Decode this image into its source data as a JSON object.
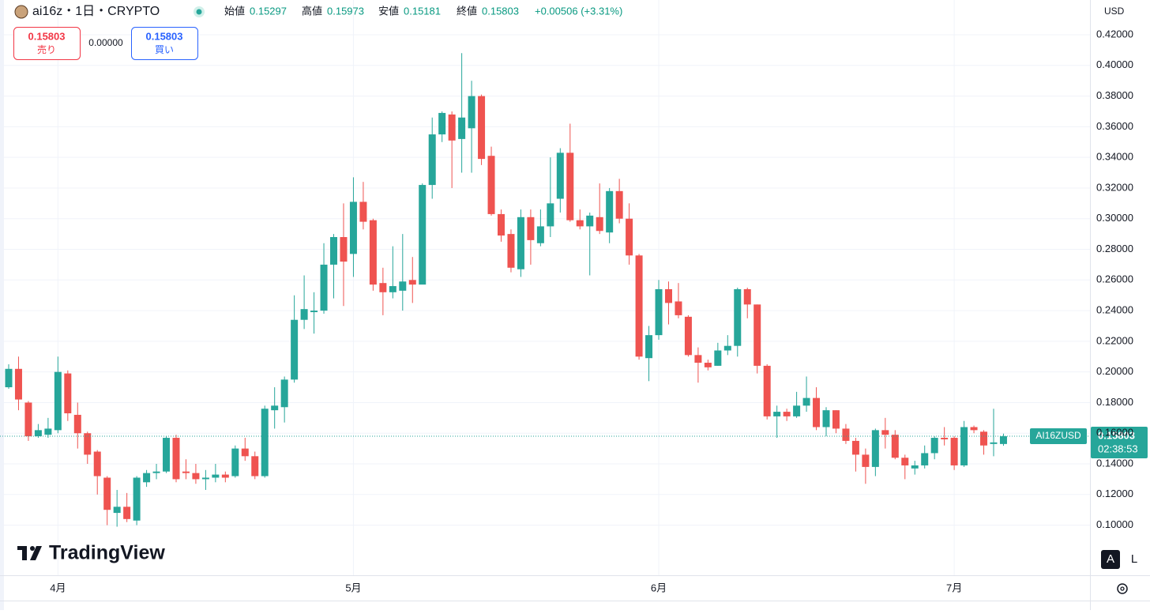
{
  "header": {
    "symbol": "ai16z・1日・CRYPTO",
    "open_label": "始値",
    "high_label": "高値",
    "low_label": "安値",
    "close_label": "終値",
    "change": "+0.00506 (+3.31%)"
  },
  "trade": {
    "sell_label": "売り",
    "spread": "0.00000",
    "buy_label": "買い"
  },
  "currency": "USD",
  "price_tag": {
    "symbol": "AI16ZUSD",
    "countdown": "02:38:53"
  },
  "logo": "TradingView",
  "buttons": [
    "A",
    "L"
  ],
  "chart_data": {
    "type": "candlestick",
    "up_color": "#26a69a",
    "down_color": "#ef5350",
    "open": [
      0.19,
      0.202,
      0.18,
      0.158,
      0.159,
      0.162,
      0.199,
      0.172,
      0.16,
      0.148,
      0.131,
      0.108,
      0.112,
      0.103,
      0.128,
      0.134,
      0.135,
      0.157,
      0.135,
      0.134,
      0.13,
      0.131,
      0.133,
      0.132,
      0.15,
      0.145,
      0.132,
      0.175,
      0.177,
      0.195,
      0.234,
      0.239,
      0.24,
      0.27,
      0.288,
      0.277,
      0.311,
      0.299,
      0.258,
      0.252,
      0.253,
      0.26,
      0.257,
      0.322,
      0.355,
      0.368,
      0.352,
      0.359,
      0.38,
      0.341,
      0.303,
      0.29,
      0.267,
      0.301,
      0.284,
      0.295,
      0.313,
      0.343,
      0.299,
      0.295,
      0.301,
      0.291,
      0.318,
      0.3,
      0.276,
      0.209,
      0.224,
      0.254,
      0.246,
      0.236,
      0.211,
      0.206,
      0.204,
      0.214,
      0.217,
      0.254,
      0.244,
      0.204,
      0.171,
      0.174,
      0.171,
      0.178,
      0.183,
      0.164,
      0.175,
      0.163,
      0.155,
      0.146,
      0.138,
      0.162,
      0.159,
      0.144,
      0.137,
      0.139,
      0.147,
      0.157,
      0.157,
      0.139,
      0.164,
      0.161,
      0.153,
      0.15297
    ],
    "high": [
      0.205,
      0.21,
      0.181,
      0.166,
      0.17,
      0.21,
      0.201,
      0.18,
      0.161,
      0.149,
      0.132,
      0.123,
      0.121,
      0.132,
      0.136,
      0.14,
      0.158,
      0.159,
      0.143,
      0.14,
      0.136,
      0.14,
      0.135,
      0.152,
      0.157,
      0.148,
      0.178,
      0.19,
      0.197,
      0.25,
      0.263,
      0.252,
      0.284,
      0.29,
      0.31,
      0.327,
      0.324,
      0.3,
      0.268,
      0.282,
      0.29,
      0.275,
      0.323,
      0.366,
      0.37,
      0.37,
      0.408,
      0.39,
      0.381,
      0.347,
      0.306,
      0.293,
      0.306,
      0.306,
      0.306,
      0.34,
      0.346,
      0.362,
      0.306,
      0.304,
      0.323,
      0.32,
      0.326,
      0.31,
      0.277,
      0.23,
      0.26,
      0.259,
      0.258,
      0.237,
      0.216,
      0.208,
      0.219,
      0.224,
      0.255,
      0.255,
      0.244,
      0.205,
      0.178,
      0.176,
      0.187,
      0.197,
      0.19,
      0.177,
      0.175,
      0.166,
      0.157,
      0.15,
      0.163,
      0.17,
      0.162,
      0.146,
      0.142,
      0.152,
      0.158,
      0.164,
      0.158,
      0.168,
      0.165,
      0.162,
      0.176,
      0.15973
    ],
    "low": [
      0.189,
      0.175,
      0.155,
      0.157,
      0.157,
      0.16,
      0.168,
      0.15,
      0.14,
      0.12,
      0.1,
      0.099,
      0.102,
      0.1,
      0.125,
      0.13,
      0.134,
      0.128,
      0.13,
      0.127,
      0.123,
      0.128,
      0.128,
      0.131,
      0.142,
      0.13,
      0.131,
      0.163,
      0.167,
      0.193,
      0.228,
      0.225,
      0.238,
      0.248,
      0.243,
      0.262,
      0.293,
      0.253,
      0.237,
      0.248,
      0.24,
      0.245,
      0.26,
      0.313,
      0.35,
      0.32,
      0.33,
      0.33,
      0.335,
      0.302,
      0.285,
      0.265,
      0.262,
      0.27,
      0.282,
      0.288,
      0.304,
      0.298,
      0.293,
      0.263,
      0.29,
      0.284,
      0.297,
      0.27,
      0.208,
      0.194,
      0.221,
      0.231,
      0.235,
      0.21,
      0.193,
      0.201,
      0.204,
      0.211,
      0.21,
      0.235,
      0.199,
      0.169,
      0.157,
      0.168,
      0.17,
      0.174,
      0.162,
      0.158,
      0.16,
      0.153,
      0.135,
      0.127,
      0.132,
      0.15,
      0.143,
      0.13,
      0.133,
      0.137,
      0.143,
      0.152,
      0.136,
      0.138,
      0.16,
      0.146,
      0.145,
      0.15181
    ],
    "close": [
      0.202,
      0.182,
      0.158,
      0.162,
      0.163,
      0.2,
      0.173,
      0.16,
      0.146,
      0.132,
      0.11,
      0.112,
      0.104,
      0.131,
      0.134,
      0.135,
      0.157,
      0.13,
      0.134,
      0.13,
      0.131,
      0.133,
      0.131,
      0.15,
      0.145,
      0.132,
      0.176,
      0.178,
      0.195,
      0.234,
      0.241,
      0.24,
      0.27,
      0.288,
      0.272,
      0.311,
      0.298,
      0.257,
      0.252,
      0.256,
      0.259,
      0.257,
      0.322,
      0.355,
      0.369,
      0.351,
      0.366,
      0.38,
      0.339,
      0.303,
      0.289,
      0.268,
      0.301,
      0.286,
      0.295,
      0.31,
      0.343,
      0.299,
      0.295,
      0.302,
      0.292,
      0.318,
      0.3,
      0.276,
      0.21,
      0.224,
      0.254,
      0.245,
      0.237,
      0.211,
      0.206,
      0.203,
      0.214,
      0.217,
      0.254,
      0.244,
      0.204,
      0.171,
      0.174,
      0.171,
      0.178,
      0.183,
      0.164,
      0.175,
      0.163,
      0.155,
      0.146,
      0.138,
      0.162,
      0.159,
      0.144,
      0.139,
      0.139,
      0.147,
      0.157,
      0.156,
      0.139,
      0.164,
      0.162,
      0.152,
      0.154,
      0.15803
    ],
    "ylim": [
      0.0673,
      0.4427
    ],
    "yticks": [
      {
        "value": 0.1,
        "label": "0.10000"
      },
      {
        "value": 0.12,
        "label": "0.12000"
      },
      {
        "value": 0.14,
        "label": "0.14000"
      },
      {
        "value": 0.16,
        "label": "0.16000"
      },
      {
        "value": 0.18,
        "label": "0.18000"
      },
      {
        "value": 0.2,
        "label": "0.20000"
      },
      {
        "value": 0.22,
        "label": "0.22000"
      },
      {
        "value": 0.24,
        "label": "0.24000"
      },
      {
        "value": 0.26,
        "label": "0.26000"
      },
      {
        "value": 0.28,
        "label": "0.28000"
      },
      {
        "value": 0.3,
        "label": "0.30000"
      },
      {
        "value": 0.32,
        "label": "0.32000"
      },
      {
        "value": 0.34,
        "label": "0.34000"
      },
      {
        "value": 0.36,
        "label": "0.36000"
      },
      {
        "value": 0.38,
        "label": "0.38000"
      },
      {
        "value": 0.4,
        "label": "0.40000"
      },
      {
        "value": 0.42,
        "label": "0.42000"
      }
    ],
    "xticks": [
      {
        "value": 5,
        "label": "4月"
      },
      {
        "value": 35,
        "label": "5月"
      },
      {
        "value": 66,
        "label": "6月"
      },
      {
        "value": 96,
        "label": "7月"
      }
    ],
    "grid": true
  }
}
